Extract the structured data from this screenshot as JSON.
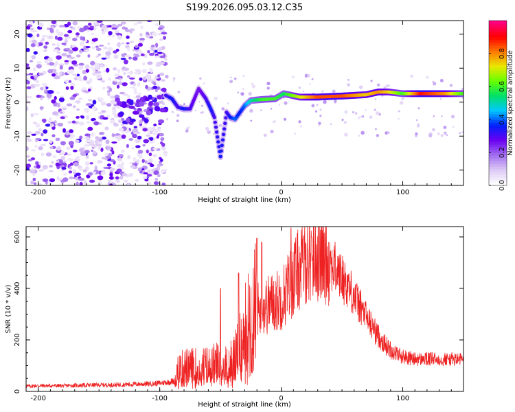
{
  "chart_data": [
    {
      "type": "heatmap",
      "title": "S199.2026.095.03.12.C35",
      "xlabel": "Height of straight line (km)",
      "ylabel": "Frequency (Hz)",
      "xlim": [
        -210,
        150
      ],
      "ylim": [
        -24.5,
        24
      ],
      "xticks": [
        -200,
        -100,
        0,
        100
      ],
      "yticks": [
        -20,
        -10,
        0,
        10,
        20
      ],
      "colorbar": {
        "label": "Normalized spectral amplitude",
        "range": [
          0,
          1
        ],
        "ticks": [
          0.0,
          0.2,
          0.4,
          0.6,
          0.8
        ],
        "colors": [
          "#ffffff",
          "#dcc8f5",
          "#a06cf0",
          "#6a00f0",
          "#0020ff",
          "#00c8ff",
          "#00e06a",
          "#66ff00",
          "#e8e800",
          "#ff7a00",
          "#ff0000",
          "#ff0080"
        ]
      },
      "features": {
        "noise_region_x": [
          -210,
          -95
        ],
        "arc_points": [
          {
            "x": -95,
            "f": 2.0,
            "a": 0.3
          },
          {
            "x": -90,
            "f": 1.0,
            "a": 0.35
          },
          {
            "x": -85,
            "f": -1.5,
            "a": 0.3
          },
          {
            "x": -80,
            "f": -2.0,
            "a": 0.35
          },
          {
            "x": -75,
            "f": -2.0,
            "a": 0.3
          },
          {
            "x": -68,
            "f": 4.0,
            "a": 0.25
          },
          {
            "x": -62,
            "f": 1.0,
            "a": 0.3
          },
          {
            "x": -58,
            "f": -2.0,
            "a": 0.35
          },
          {
            "x": -55,
            "f": -4.5,
            "a": 0.3
          },
          {
            "x": -50,
            "f": -16.0,
            "a": 0.35
          },
          {
            "x": -45,
            "f": -3.0,
            "a": 0.3
          },
          {
            "x": -42,
            "f": -4.5,
            "a": 0.35
          },
          {
            "x": -38,
            "f": -5.0,
            "a": 0.4
          },
          {
            "x": -34,
            "f": -3.0,
            "a": 0.35
          },
          {
            "x": -30,
            "f": -1.0,
            "a": 0.4
          },
          {
            "x": -25,
            "f": 0.5,
            "a": 0.5
          },
          {
            "x": -15,
            "f": 0.8,
            "a": 0.6
          },
          {
            "x": -5,
            "f": 1.0,
            "a": 0.6
          },
          {
            "x": 2,
            "f": 2.5,
            "a": 0.55
          },
          {
            "x": 15,
            "f": 1.5,
            "a": 0.7
          },
          {
            "x": 30,
            "f": 1.5,
            "a": 0.85
          },
          {
            "x": 50,
            "f": 1.8,
            "a": 0.85
          },
          {
            "x": 70,
            "f": 2.2,
            "a": 0.75
          },
          {
            "x": 80,
            "f": 3.0,
            "a": 0.8
          },
          {
            "x": 88,
            "f": 3.0,
            "a": 0.75
          },
          {
            "x": 100,
            "f": 2.5,
            "a": 0.6
          },
          {
            "x": 115,
            "f": 2.5,
            "a": 0.9
          },
          {
            "x": 135,
            "f": 2.5,
            "a": 0.8
          },
          {
            "x": 150,
            "f": 2.5,
            "a": 0.6
          }
        ]
      }
    },
    {
      "type": "line",
      "xlabel": "Height of straight line (km)",
      "ylabel": "SNR (10 * v/v)",
      "xlim": [
        -210,
        150
      ],
      "ylim": [
        0,
        640
      ],
      "xticks": [
        -200,
        -100,
        0,
        100
      ],
      "yticks": [
        0,
        200,
        400,
        600
      ],
      "color": "#ee2222",
      "series": [
        {
          "name": "SNR",
          "x": [
            -210,
            -200,
            -180,
            -160,
            -140,
            -120,
            -105,
            -95,
            -88,
            -85,
            -80,
            -70,
            -60,
            -50,
            -45,
            -40,
            -35,
            -30,
            -25,
            -20,
            -15,
            -10,
            -5,
            0,
            5,
            10,
            15,
            20,
            25,
            30,
            35,
            40,
            45,
            50,
            55,
            60,
            65,
            70,
            75,
            80,
            85,
            90,
            100,
            110,
            120,
            130,
            140,
            150
          ],
          "values": [
            20,
            22,
            22,
            24,
            25,
            28,
            30,
            35,
            40,
            75,
            90,
            90,
            95,
            105,
            95,
            110,
            160,
            220,
            280,
            320,
            320,
            340,
            350,
            360,
            400,
            440,
            480,
            510,
            530,
            530,
            520,
            500,
            475,
            440,
            410,
            370,
            330,
            290,
            250,
            215,
            185,
            160,
            135,
            125,
            125,
            125,
            125,
            125
          ]
        }
      ],
      "spikes": [
        {
          "x": -50,
          "value": 400
        },
        {
          "x": -35,
          "value": 460
        },
        {
          "x": -20,
          "value": 595
        },
        {
          "x": -16,
          "value": 580
        },
        {
          "x": 8,
          "value": 635
        },
        {
          "x": 25,
          "value": 600
        }
      ]
    }
  ]
}
